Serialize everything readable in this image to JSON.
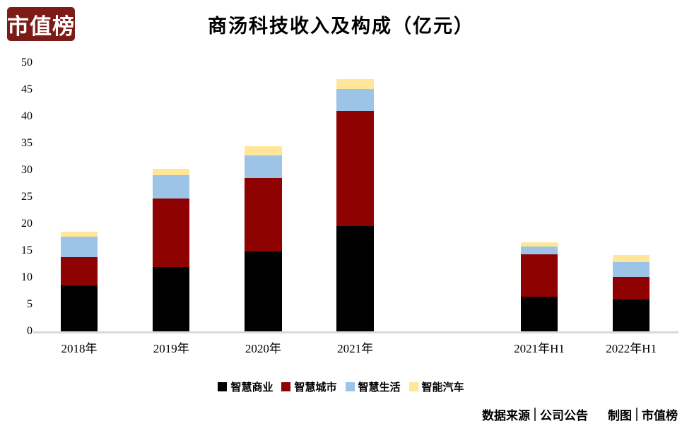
{
  "logo": {
    "text": "市值榜",
    "bg_color": "#7D1C16",
    "text_color": "#FFFFFF"
  },
  "chart_data": {
    "type": "bar",
    "stacked": true,
    "title": "商汤科技收入及构成（亿元）",
    "categories": [
      "2018年",
      "2019年",
      "2020年",
      "2021年",
      "2021年H1",
      "2022年H1"
    ],
    "category_slots": [
      0,
      1,
      2,
      3,
      5,
      6
    ],
    "num_slots": 7,
    "series": [
      {
        "name": "智慧商业",
        "color": "#000000",
        "values": [
          8.53,
          12.0,
          14.85,
          19.58,
          6.47,
          5.86
        ]
      },
      {
        "name": "智慧城市",
        "color": "#8E0202",
        "values": [
          5.28,
          12.7,
          13.69,
          21.44,
          7.86,
          4.33
        ]
      },
      {
        "name": "智慧生活",
        "color": "#9DC3E6",
        "values": [
          3.79,
          4.42,
          4.24,
          4.15,
          1.48,
          2.73
        ]
      },
      {
        "name": "智能汽车",
        "color": "#FFE699",
        "values": [
          0.92,
          1.15,
          1.67,
          1.84,
          0.71,
          1.23
        ]
      }
    ],
    "totals": [
      18.52,
      30.27,
      34.45,
      47.01,
      16.52,
      14.15
    ],
    "ylim": [
      0,
      50
    ],
    "ytick_step": 5,
    "grid": false,
    "legend_position": "bottom",
    "axis_line_color": "#D9D9D9"
  },
  "footer": {
    "source_label": "数据来源",
    "source_value": "公司公告",
    "credit_label": "制图",
    "credit_value": "市值榜"
  }
}
